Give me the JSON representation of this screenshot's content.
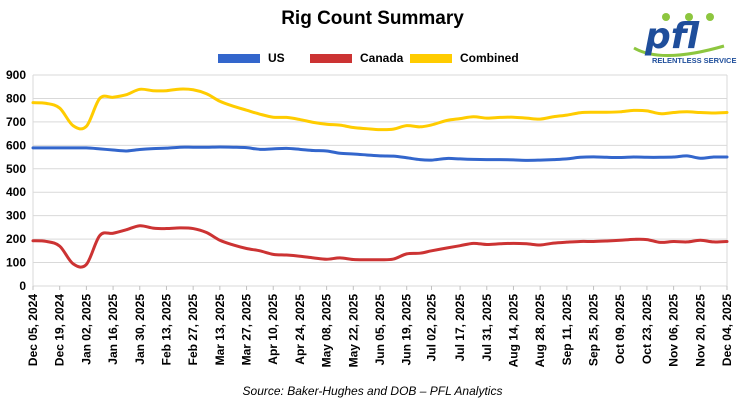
{
  "chart_data": {
    "type": "line",
    "title": "Rig Count Summary",
    "source": "Source: Baker-Hughes and DOB – PFL Analytics",
    "xlabel": "",
    "ylabel": "",
    "ylim": [
      0,
      900
    ],
    "yticks": [
      0,
      100,
      200,
      300,
      400,
      500,
      600,
      700,
      800,
      900
    ],
    "grid": true,
    "legend_position": "top",
    "x_tick_labels": [
      "Dec 05, 2024",
      "Dec 19, 2024",
      "Jan 02, 2025",
      "Jan 16, 2025",
      "Jan 30, 2025",
      "Feb 13, 2025",
      "Feb 27, 2025",
      "Mar 13, 2025",
      "Mar 27, 2025",
      "Apr 10, 2025",
      "Apr 24, 2025",
      "May 08, 2025",
      "May 22, 2025",
      "Jun 05, 2025",
      "Jun 19, 2025",
      "Jul 02, 2025",
      "Jul 17, 2025",
      "Jul 31, 2025",
      "Aug 14, 2025",
      "Aug 28, 2025",
      "Sep 11, 2025",
      "Sep 25, 2025",
      "Oct 09, 2025",
      "Oct 23, 2025",
      "Nov 06, 2025",
      "Nov 20, 2025",
      "Dec 04, 2025"
    ],
    "x": [
      "2024-12-05",
      "2024-12-12",
      "2024-12-19",
      "2024-12-26",
      "2025-01-02",
      "2025-01-09",
      "2025-01-16",
      "2025-01-23",
      "2025-01-30",
      "2025-02-06",
      "2025-02-13",
      "2025-02-20",
      "2025-02-27",
      "2025-03-06",
      "2025-03-13",
      "2025-03-20",
      "2025-03-27",
      "2025-04-03",
      "2025-04-10",
      "2025-04-17",
      "2025-04-24",
      "2025-05-01",
      "2025-05-08",
      "2025-05-15",
      "2025-05-22",
      "2025-05-29",
      "2025-06-05",
      "2025-06-12",
      "2025-06-19",
      "2025-06-26",
      "2025-07-02",
      "2025-07-10",
      "2025-07-17",
      "2025-07-24",
      "2025-07-31",
      "2025-08-07",
      "2025-08-14",
      "2025-08-21",
      "2025-08-28",
      "2025-09-04",
      "2025-09-11",
      "2025-09-18",
      "2025-09-25",
      "2025-10-02",
      "2025-10-09",
      "2025-10-16",
      "2025-10-23",
      "2025-10-30",
      "2025-11-06",
      "2025-11-13",
      "2025-11-20",
      "2025-11-27",
      "2025-12-04"
    ],
    "series": [
      {
        "name": "US",
        "color": "#3366CC",
        "values": [
          589,
          589,
          589,
          589,
          589,
          585,
          580,
          576,
          582,
          586,
          588,
          592,
          592,
          592,
          593,
          592,
          590,
          583,
          585,
          587,
          583,
          578,
          576,
          566,
          563,
          559,
          555,
          554,
          547,
          539,
          537,
          544,
          542,
          540,
          539,
          539,
          538,
          536,
          537,
          539,
          542,
          549,
          551,
          549,
          548,
          550,
          549,
          549,
          550,
          555,
          545,
          550,
          550
        ]
      },
      {
        "name": "Canada",
        "color": "#CC3333",
        "values": [
          193,
          190,
          170,
          95,
          92,
          215,
          225,
          240,
          257,
          247,
          245,
          248,
          245,
          228,
          195,
          175,
          160,
          150,
          135,
          132,
          127,
          120,
          114,
          120,
          113,
          112,
          112,
          115,
          137,
          140,
          150,
          162,
          172,
          182,
          177,
          180,
          182,
          180,
          175,
          183,
          187,
          190,
          190,
          192,
          195,
          199,
          198,
          186,
          190,
          188,
          195,
          188,
          190
        ]
      },
      {
        "name": "Combined",
        "color": "#FFCC00",
        "values": [
          782,
          779,
          759,
          684,
          681,
          800,
          805,
          816,
          839,
          833,
          833,
          840,
          837,
          820,
          788,
          767,
          750,
          733,
          720,
          719,
          710,
          698,
          690,
          686,
          676,
          671,
          667,
          669,
          684,
          679,
          687,
          706,
          714,
          722,
          716,
          719,
          720,
          716,
          712,
          722,
          729,
          739,
          741,
          741,
          743,
          749,
          747,
          735,
          740,
          743,
          740,
          738,
          740
        ]
      }
    ]
  },
  "logo": {
    "text": "pfl",
    "tagline": "RELENTLESS SERVICE",
    "color": "#1f4e9b",
    "accent": "#8dc63f"
  }
}
